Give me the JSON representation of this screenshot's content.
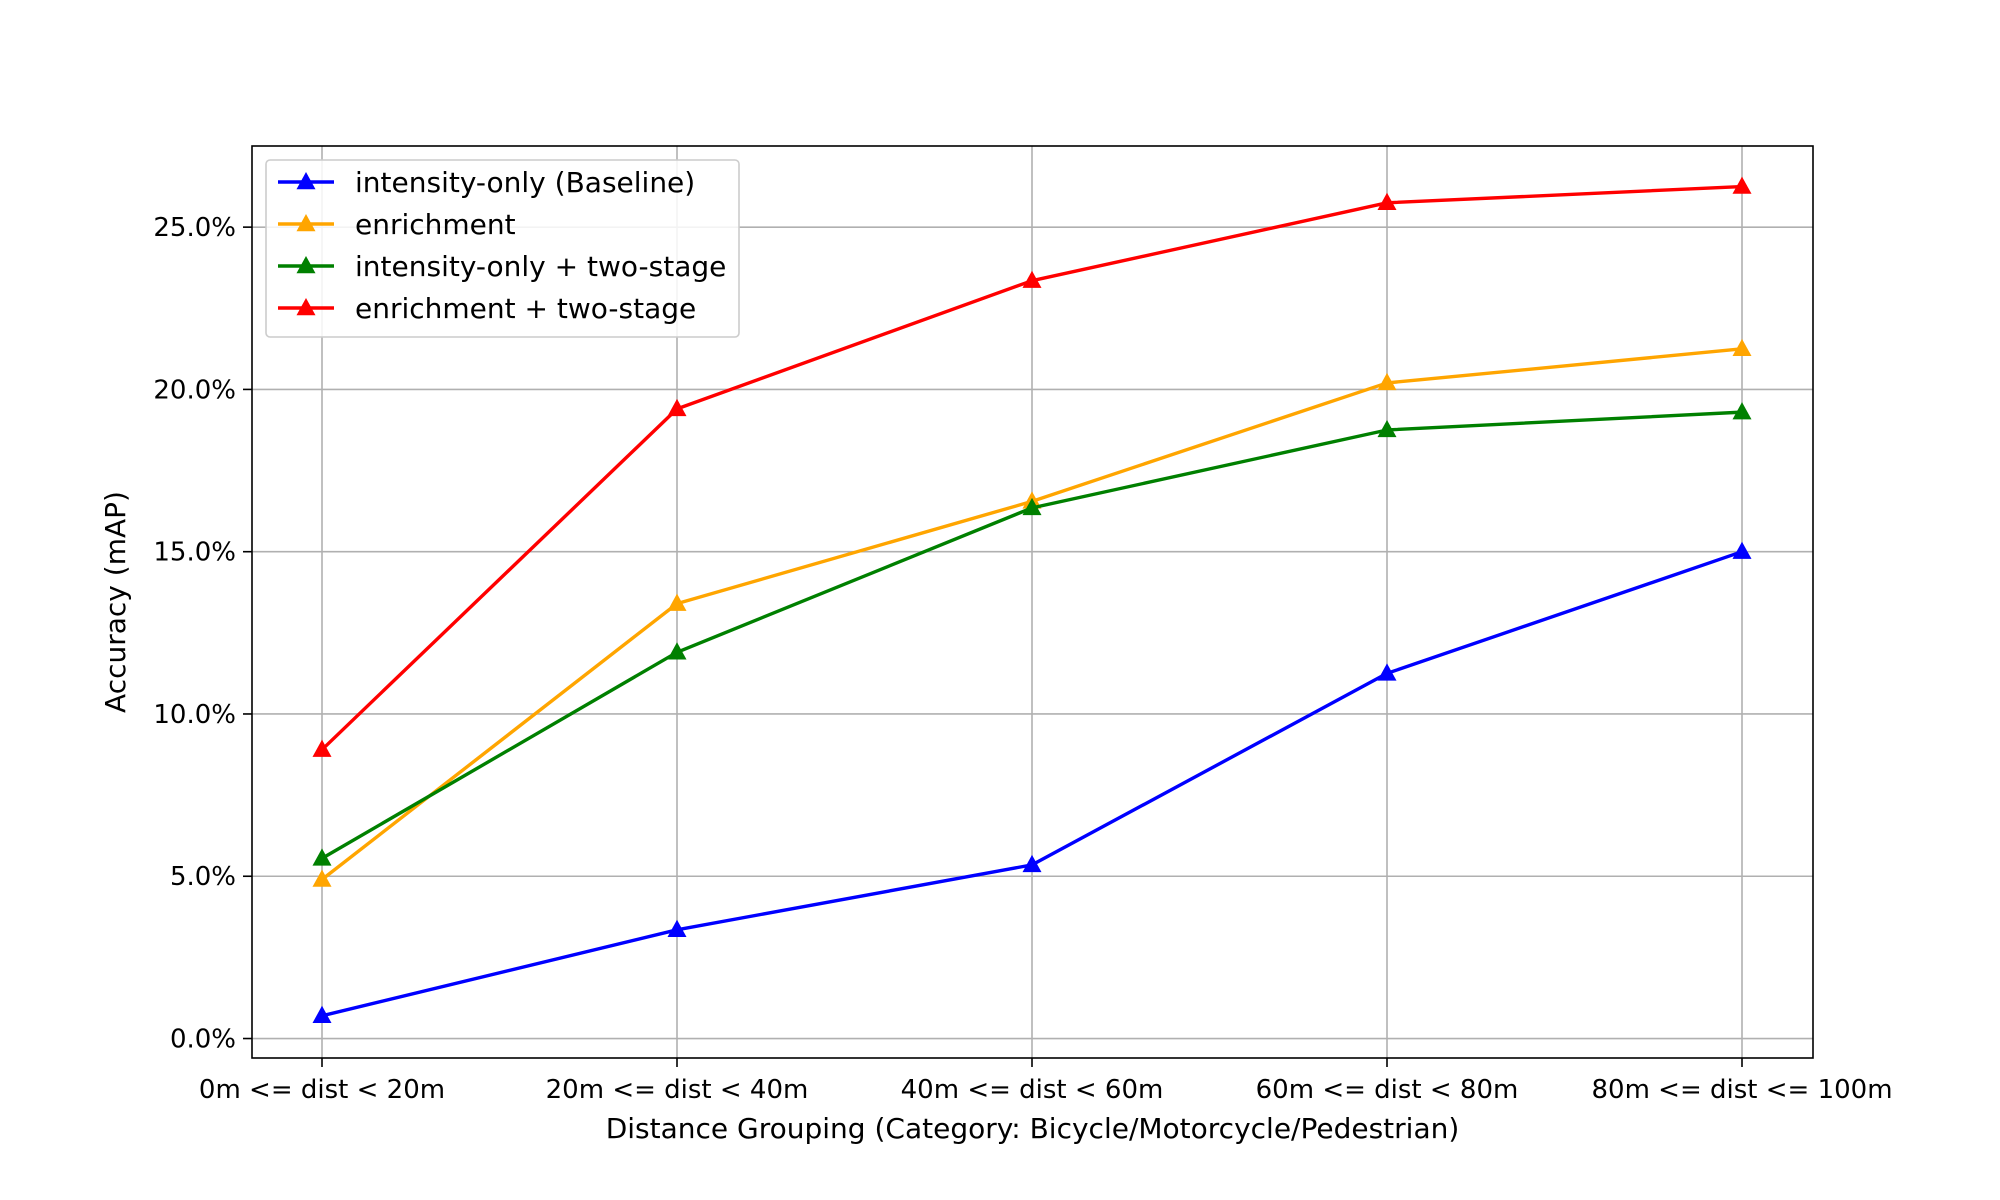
{
  "chart_data": {
    "type": "line",
    "title": "",
    "xlabel": "Distance Grouping (Category: Bicycle/Motorcycle/Pedestrian)",
    "ylabel": "Accuracy (mAP)",
    "categories": [
      "0m <= dist < 20m",
      "20m <= dist < 40m",
      "40m <= dist < 60m",
      "60m <= dist < 80m",
      "80m <= dist <= 100m"
    ],
    "ylim": [
      -0.6,
      27.5
    ],
    "yticks": [
      0,
      5,
      10,
      15,
      20,
      25
    ],
    "ytick_labels": [
      "0.0%",
      "5.0%",
      "10.0%",
      "15.0%",
      "20.0%",
      "25.0%"
    ],
    "grid": true,
    "legend_position": "top-left",
    "marker": "triangle",
    "series": [
      {
        "name": "intensity-only (Baseline)",
        "color": "#0000ff",
        "values": [
          0.7,
          3.35,
          5.35,
          11.25,
          15.0
        ]
      },
      {
        "name": "enrichment",
        "color": "#ffa500",
        "values": [
          4.9,
          13.4,
          16.55,
          20.2,
          21.25
        ]
      },
      {
        "name": "intensity-only + two-stage",
        "color": "#008000",
        "values": [
          5.55,
          11.9,
          16.35,
          18.75,
          19.3
        ]
      },
      {
        "name": "enrichment + two-stage",
        "color": "#ff0000",
        "values": [
          8.9,
          19.4,
          23.35,
          25.75,
          26.25
        ]
      }
    ]
  }
}
